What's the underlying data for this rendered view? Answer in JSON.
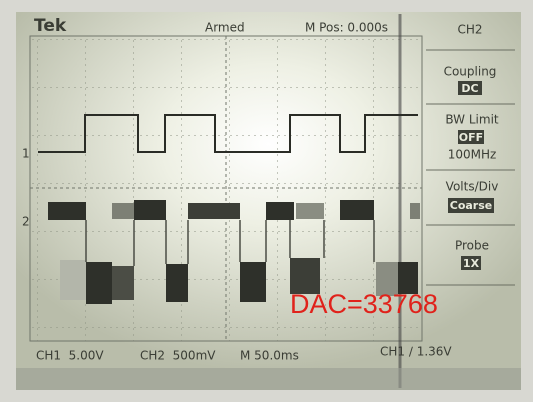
{
  "header": {
    "brand": "Tek",
    "trigger_state": "Armed",
    "position": "M Pos: 0.000s"
  },
  "menu": {
    "title": "CH2",
    "items": [
      {
        "label": "Coupling",
        "value": "DC"
      },
      {
        "label": "BW Limit",
        "value": "OFF",
        "note": "100MHz"
      },
      {
        "label": "Volts/Div",
        "value": "Coarse"
      },
      {
        "label": "Probe",
        "value": "1X"
      }
    ]
  },
  "markers": {
    "ch1": "1",
    "ch2": "2"
  },
  "annotation": "DAC=33768",
  "footer": {
    "ch1": "CH1  5.00V",
    "ch2": "CH2  500mV",
    "timebase": "M 50.0ms",
    "trigger": "CH1 ∕ 1.36V"
  }
}
